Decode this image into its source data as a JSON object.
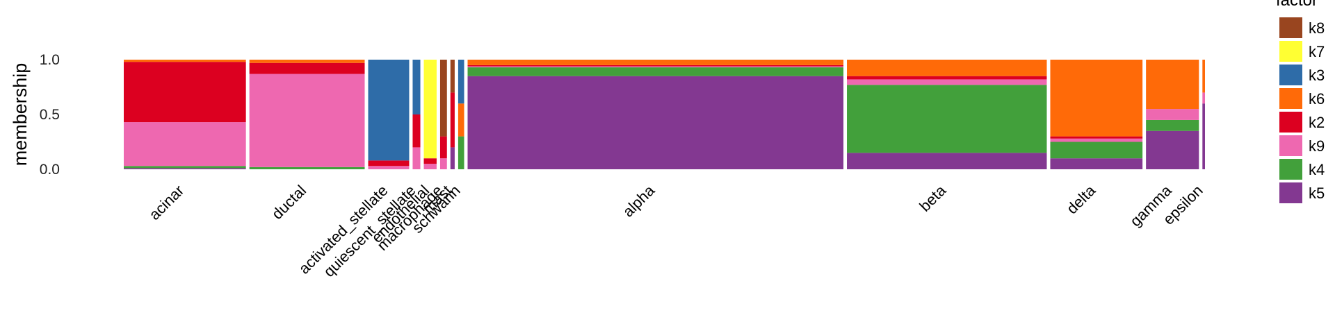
{
  "chart_data": {
    "type": "structure",
    "y_label": "membership",
    "legend_title": "factor",
    "categories": [
      "acinar",
      "ductal",
      "activated_stellate",
      "quiescent_stellate",
      "endothelial",
      "macrophage",
      "mast",
      "schwann",
      "alpha",
      "beta",
      "delta",
      "gamma",
      "epsilon"
    ],
    "widths": [
      143,
      135,
      48,
      9,
      15,
      8,
      5,
      7,
      440,
      234,
      108,
      62,
      3
    ],
    "series": [
      {
        "name": "k8",
        "color": "#99451f",
        "values": [
          0,
          0,
          0,
          0,
          0,
          0.7,
          0.3,
          0,
          0,
          0,
          0,
          0,
          0
        ]
      },
      {
        "name": "k7",
        "color": "#ffff33",
        "values": [
          0,
          0,
          0,
          0,
          0.9,
          0,
          0,
          0,
          0,
          0,
          0,
          0,
          0
        ]
      },
      {
        "name": "k3",
        "color": "#2e6ca8",
        "values": [
          0,
          0,
          0.92,
          0.5,
          0,
          0,
          0,
          0.4,
          0,
          0,
          0,
          0,
          0
        ]
      },
      {
        "name": "k6",
        "color": "#ff6a08",
        "values": [
          0.02,
          0.03,
          0,
          0,
          0,
          0,
          0,
          0.3,
          0.05,
          0.15,
          0.7,
          0.45,
          0.3
        ]
      },
      {
        "name": "k2",
        "color": "#dc0020",
        "values": [
          0.55,
          0.1,
          0.05,
          0.3,
          0.05,
          0.2,
          0.5,
          0,
          0.01,
          0.03,
          0.02,
          0,
          0
        ]
      },
      {
        "name": "k9",
        "color": "#ee68b0",
        "values": [
          0.4,
          0.85,
          0.03,
          0.2,
          0.05,
          0.1,
          0,
          0,
          0.01,
          0.05,
          0.03,
          0.1,
          0.1
        ]
      },
      {
        "name": "k4",
        "color": "#42a03b",
        "values": [
          0.02,
          0.02,
          0,
          0,
          0,
          0,
          0,
          0.3,
          0.08,
          0.62,
          0.15,
          0.1,
          0
        ]
      },
      {
        "name": "k5",
        "color": "#833891",
        "values": [
          0.01,
          0,
          0,
          0,
          0,
          0,
          0.2,
          0,
          0.85,
          0.15,
          0.1,
          0.35,
          0.6
        ]
      }
    ],
    "ylim": [
      0,
      1.35
    ],
    "yticks": [
      {
        "value": 0,
        "label": "0.0"
      },
      {
        "value": 0.5,
        "label": "0.5"
      },
      {
        "value": 1,
        "label": "1.0"
      }
    ]
  }
}
